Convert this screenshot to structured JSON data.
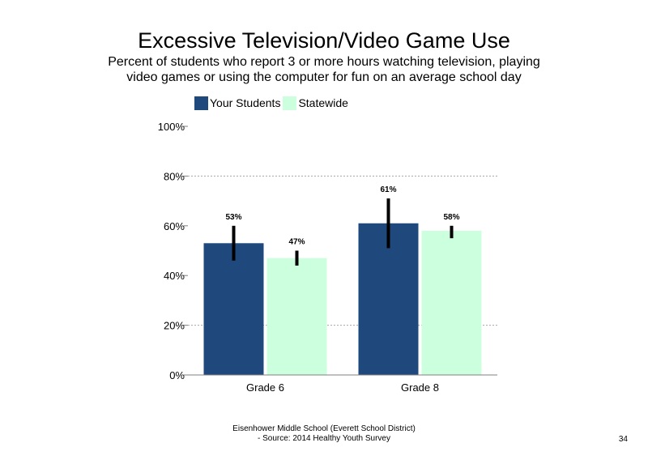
{
  "slide": {
    "title": "Excessive Television/Video Game Use",
    "subtitle": "Percent of students who report 3 or more hours watching television, playing video games or using the computer for fun on an average school day",
    "footer_line1": "Eisenhower Middle School (Everett School District)",
    "footer_line2": "- Source: 2014 Healthy Youth Survey",
    "page_number": "34"
  },
  "chart_data": {
    "type": "bar",
    "categories": [
      "Grade 6",
      "Grade 8"
    ],
    "series": [
      {
        "name": "Your Students",
        "color": "#1f497d",
        "values": [
          53,
          61
        ],
        "labels": [
          "53%",
          "61%"
        ],
        "error_low": [
          46,
          51
        ],
        "error_high": [
          60,
          71
        ]
      },
      {
        "name": "Statewide",
        "color": "#ccffdd",
        "values": [
          47,
          58
        ],
        "labels": [
          "47%",
          "58%"
        ],
        "error_low": [
          44,
          55
        ],
        "error_high": [
          50,
          60
        ]
      }
    ],
    "ylim": [
      0,
      100
    ],
    "yticks": [
      0,
      20,
      40,
      60,
      80,
      100
    ],
    "ytick_labels": [
      "0%",
      "20%",
      "40%",
      "60%",
      "80%",
      "100%"
    ],
    "gridlines": [
      20,
      80
    ],
    "legend_position": "top-left",
    "xlabel": "",
    "ylabel": ""
  }
}
